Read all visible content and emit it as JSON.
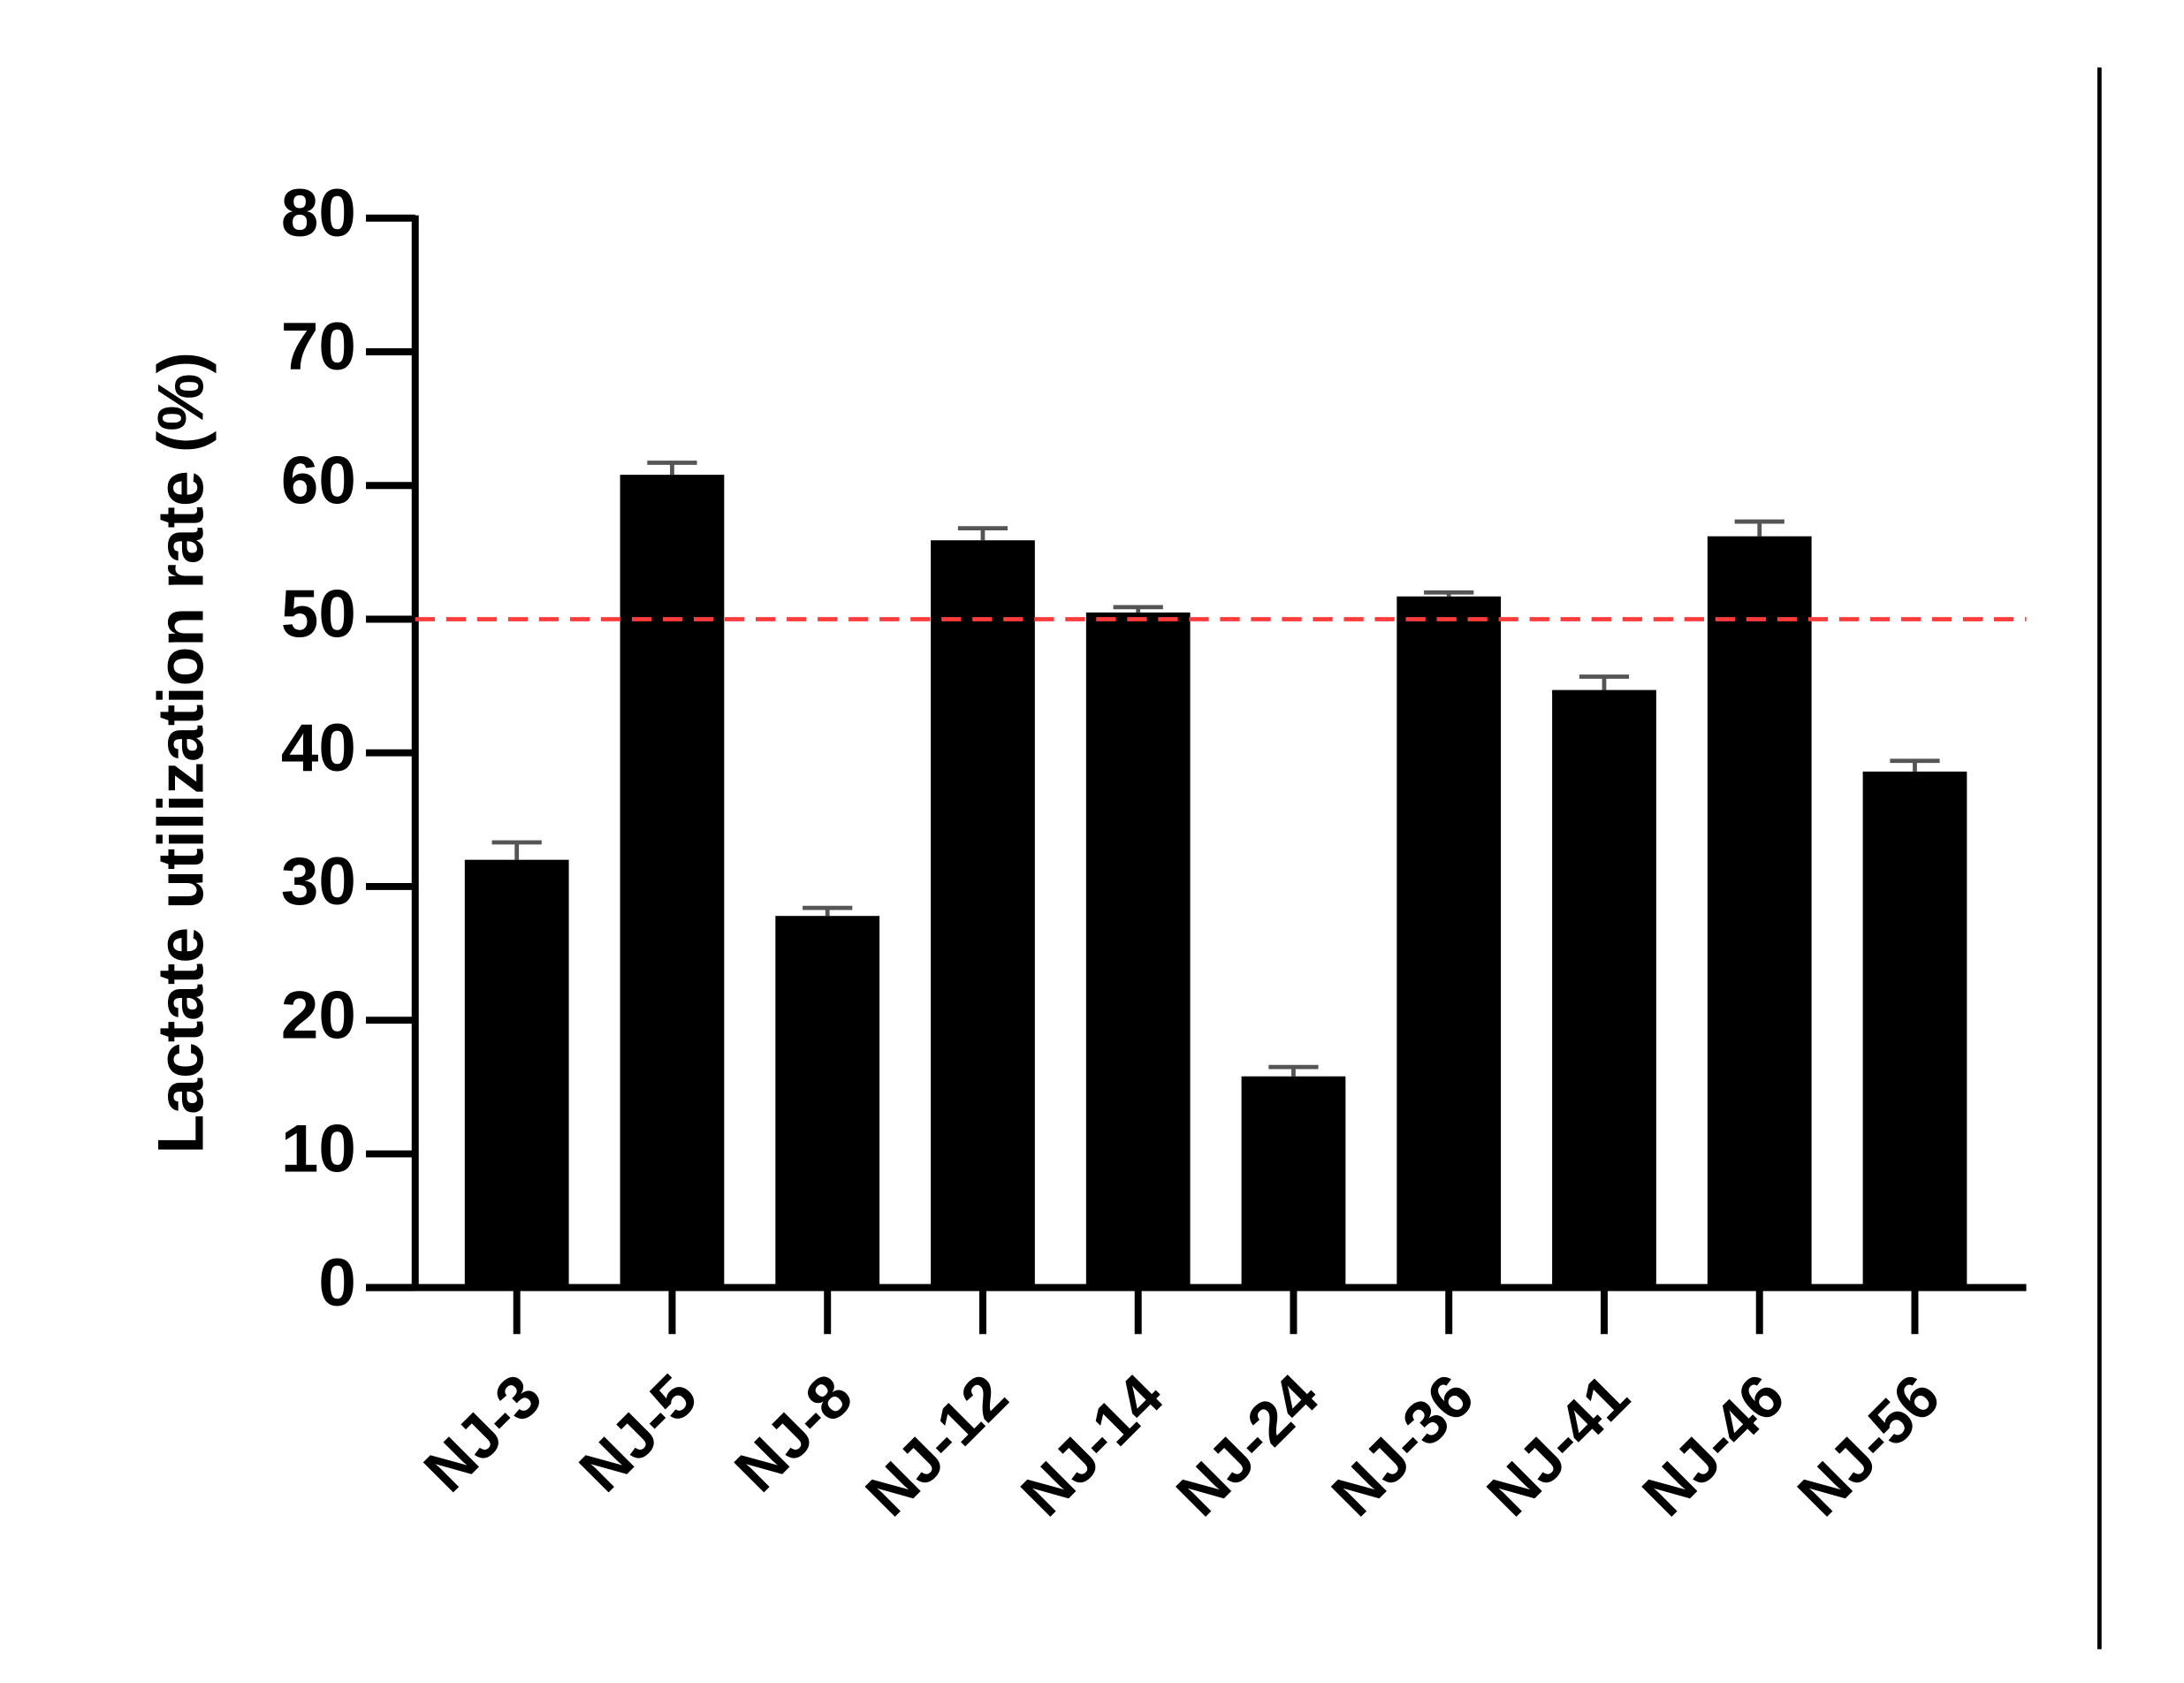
{
  "chart_data": {
    "type": "bar",
    "y_label": "Lactate utilization rate (%)",
    "categories": [
      "NJ-3",
      "NJ-5",
      "NJ-8",
      "NJ-12",
      "NJ-14",
      "NJ-24",
      "NJ-36",
      "NJ-41",
      "NJ-46",
      "NJ-56"
    ],
    "values": [
      32.0,
      60.8,
      27.8,
      55.9,
      50.5,
      15.8,
      51.7,
      44.7,
      56.2,
      38.6
    ],
    "errors": [
      1.3,
      0.9,
      0.6,
      0.9,
      0.4,
      0.7,
      0.3,
      1.0,
      1.1,
      0.8
    ],
    "color": "#000000",
    "error_color": "#555555",
    "ylim": [
      0,
      80
    ],
    "yticks": [
      0,
      10,
      20,
      30,
      40,
      50,
      60,
      70,
      80
    ],
    "reference_line": {
      "value": 50,
      "color": "#ff3b3b"
    }
  }
}
